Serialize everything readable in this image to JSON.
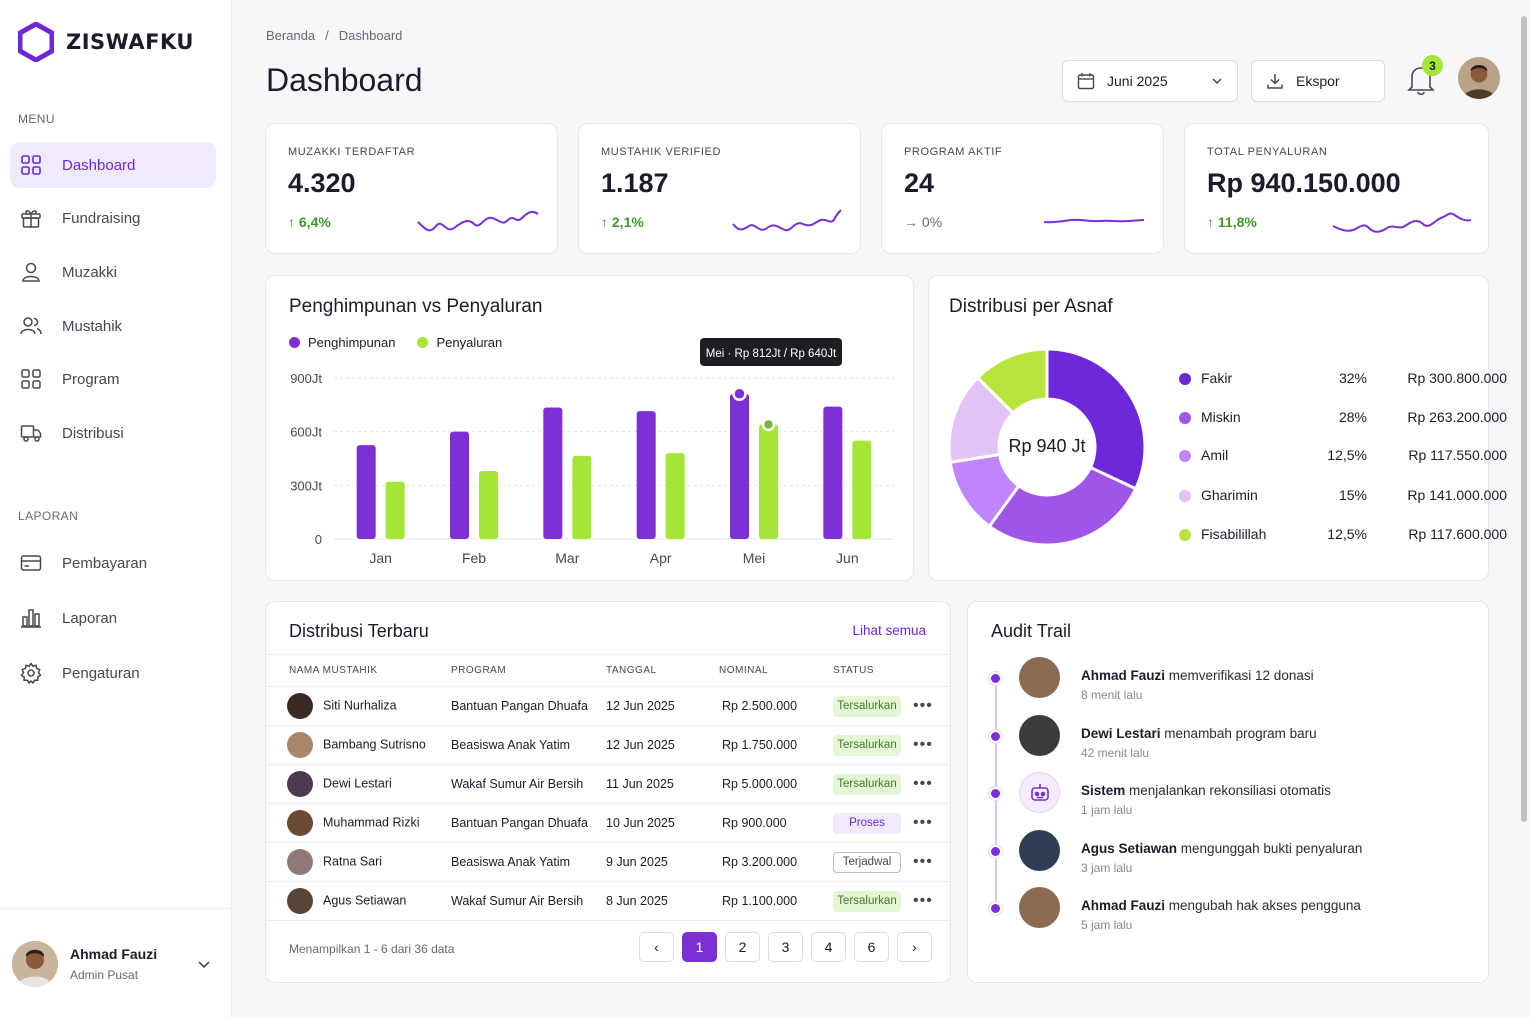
{
  "app": {
    "name": "ZISWAFKU",
    "accent": "#7c2fd3",
    "accent_light": "#a3e635"
  },
  "sidebar": {
    "menu_label": "MENU",
    "report_label": "LAPORAN",
    "menu_items": [
      {
        "label": "Dashboard",
        "icon": "grid-icon",
        "active": true
      },
      {
        "label": "Fundraising",
        "icon": "gift-icon"
      },
      {
        "label": "Muzakki",
        "icon": "user-icon"
      },
      {
        "label": "Mustahik",
        "icon": "users-icon"
      },
      {
        "label": "Program",
        "icon": "grid-icon"
      },
      {
        "label": "Distribusi",
        "icon": "truck-icon"
      }
    ],
    "report_items": [
      {
        "label": "Pembayaran",
        "icon": "card-icon"
      },
      {
        "label": "Laporan",
        "icon": "bar-chart-icon"
      },
      {
        "label": "Pengaturan",
        "icon": "gear-icon"
      }
    ],
    "user": {
      "name": "Ahmad Fauzi",
      "role": "Admin Pusat"
    }
  },
  "header": {
    "breadcrumb": [
      "Beranda",
      "/",
      "Dashboard"
    ],
    "title": "Dashboard",
    "period": "Juni 2025",
    "export_label": "Ekspor",
    "notification_count": "3"
  },
  "kpis": [
    {
      "label": "MUZAKKI TERDAFTAR",
      "value": "4.320",
      "change": "6,4%",
      "trend": "up"
    },
    {
      "label": "MUSTAHIK VERIFIED",
      "value": "1.187",
      "change": "2,1%",
      "trend": "up"
    },
    {
      "label": "PROGRAM AKTIF",
      "value": "24",
      "change": "0%",
      "trend": "flat"
    },
    {
      "label": "TOTAL PENYALURAN",
      "value": "Rp 940.150.000",
      "change": "11,8%",
      "trend": "up"
    }
  ],
  "chart_data": [
    {
      "type": "bar",
      "title": "Penghimpunan vs Penyaluran",
      "categories": [
        "Jan",
        "Feb",
        "Mar",
        "Apr",
        "Mei",
        "Jun"
      ],
      "series": [
        {
          "name": "Penghimpunan",
          "color": "#7c2fd3",
          "values": [
            525,
            600,
            735,
            715,
            812,
            740
          ]
        },
        {
          "name": "Penyaluran",
          "color": "#a3e635",
          "values": [
            320,
            380,
            465,
            480,
            640,
            550
          ]
        }
      ],
      "y_ticks": [
        "0",
        "300Jt",
        "600Jt",
        "900Jt"
      ],
      "ylim": [
        0,
        900
      ],
      "grid": true,
      "legend_position": "top-left",
      "tooltip": {
        "category": "Mei",
        "text": "Mei · Rp 812Jt / Rp 640Jt"
      }
    },
    {
      "type": "pie",
      "title": "Distribusi per Asnaf",
      "center_label": "Rp 940 Jt",
      "slices": [
        {
          "name": "Fakir",
          "percent": 32,
          "percent_label": "32%",
          "amount": "Rp 300.800.000",
          "color": "#6d28d9"
        },
        {
          "name": "Miskin",
          "percent": 28,
          "percent_label": "28%",
          "amount": "Rp 263.200.000",
          "color": "#9f56e8"
        },
        {
          "name": "Amil",
          "percent": 12.5,
          "percent_label": "12,5%",
          "amount": "Rp 117.550.000",
          "color": "#c084fc"
        },
        {
          "name": "Gharimin",
          "percent": 15,
          "percent_label": "15%",
          "amount": "Rp 141.000.000",
          "color": "#e3c3f7"
        },
        {
          "name": "Fisabilillah",
          "percent": 12.5,
          "percent_label": "12,5%",
          "amount": "Rp 117.600.000",
          "color": "#b7e43d"
        }
      ]
    }
  ],
  "distribution": {
    "title": "Distribusi Terbaru",
    "see_all": "Lihat semua",
    "columns": [
      "NAMA MUSTAHIK",
      "PROGRAM",
      "TANGGAL",
      "NOMINAL",
      "STATUS"
    ],
    "rows": [
      {
        "name": "Siti Nurhaliza",
        "program": "Bantuan Pangan Dhuafa",
        "date": "12 Jun 2025",
        "amount": "Rp 2.500.000",
        "status": "Tersalurkan",
        "status_kind": "done"
      },
      {
        "name": "Bambang Sutrisno",
        "program": "Beasiswa Anak Yatim",
        "date": "12 Jun 2025",
        "amount": "Rp 1.750.000",
        "status": "Tersalurkan",
        "status_kind": "done"
      },
      {
        "name": "Dewi Lestari",
        "program": "Wakaf Sumur Air Bersih",
        "date": "11 Jun 2025",
        "amount": "Rp 5.000.000",
        "status": "Tersalurkan",
        "status_kind": "done"
      },
      {
        "name": "Muhammad Rizki",
        "program": "Bantuan Pangan Dhuafa",
        "date": "10 Jun 2025",
        "amount": "Rp 900.000",
        "status": "Proses",
        "status_kind": "proc"
      },
      {
        "name": "Ratna Sari",
        "program": "Beasiswa Anak Yatim",
        "date": "9 Jun 2025",
        "amount": "Rp 3.200.000",
        "status": "Terjadwal",
        "status_kind": "sched"
      },
      {
        "name": "Agus Setiawan",
        "program": "Wakaf Sumur Air Bersih",
        "date": "8 Jun 2025",
        "amount": "Rp 1.100.000",
        "status": "Tersalurkan",
        "status_kind": "done"
      }
    ],
    "footer": "Menampilkan 1 - 6 dari 36 data",
    "pages": [
      "1",
      "2",
      "3",
      "4",
      "6"
    ],
    "current_page": "1",
    "prev_icon": "chevron-left-icon",
    "next_icon": "chevron-right-icon"
  },
  "audit": {
    "title": "Audit Trail",
    "items": [
      {
        "actor": "Ahmad Fauzi",
        "action": "memverifikasi 12 donasi",
        "time": "8 menit lalu"
      },
      {
        "actor": "Dewi Lestari",
        "action": "menambah program baru",
        "time": "42 menit lalu"
      },
      {
        "actor": "Sistem",
        "action": "menjalankan rekonsiliasi otomatis",
        "time": "1 jam lalu"
      },
      {
        "actor": "Agus Setiawan",
        "action": "mengunggah bukti penyaluran",
        "time": "3 jam lalu"
      },
      {
        "actor": "Ahmad Fauzi",
        "action": "mengubah hak akses pengguna",
        "time": "5 jam lalu"
      }
    ]
  }
}
